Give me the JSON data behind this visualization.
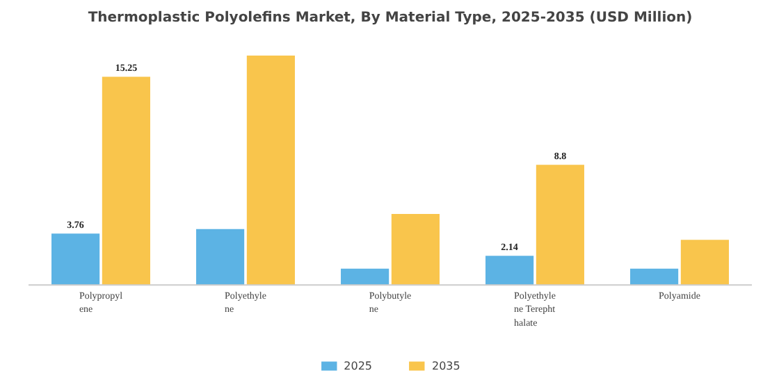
{
  "chart_data": {
    "type": "bar",
    "title": "Thermoplastic Polyolefins Market, By Material Type, 2025-2035 (USD Million)",
    "categories": [
      "Polypropylene",
      "Polyethylene",
      "Polybutylene",
      "Polyethylene Terephthalate",
      "Polyamide"
    ],
    "series": [
      {
        "name": "2025",
        "color": "#5cb3e4",
        "values": [
          3.76,
          4.1,
          1.2,
          2.14,
          1.2
        ],
        "value_labels": [
          "3.76",
          null,
          null,
          "2.14",
          null
        ]
      },
      {
        "name": "2035",
        "color": "#f9c54c",
        "values": [
          15.25,
          16.8,
          5.2,
          8.8,
          3.3
        ],
        "value_labels": [
          "15.25",
          null,
          null,
          "8.8",
          null
        ]
      }
    ],
    "legend": "bottom"
  }
}
